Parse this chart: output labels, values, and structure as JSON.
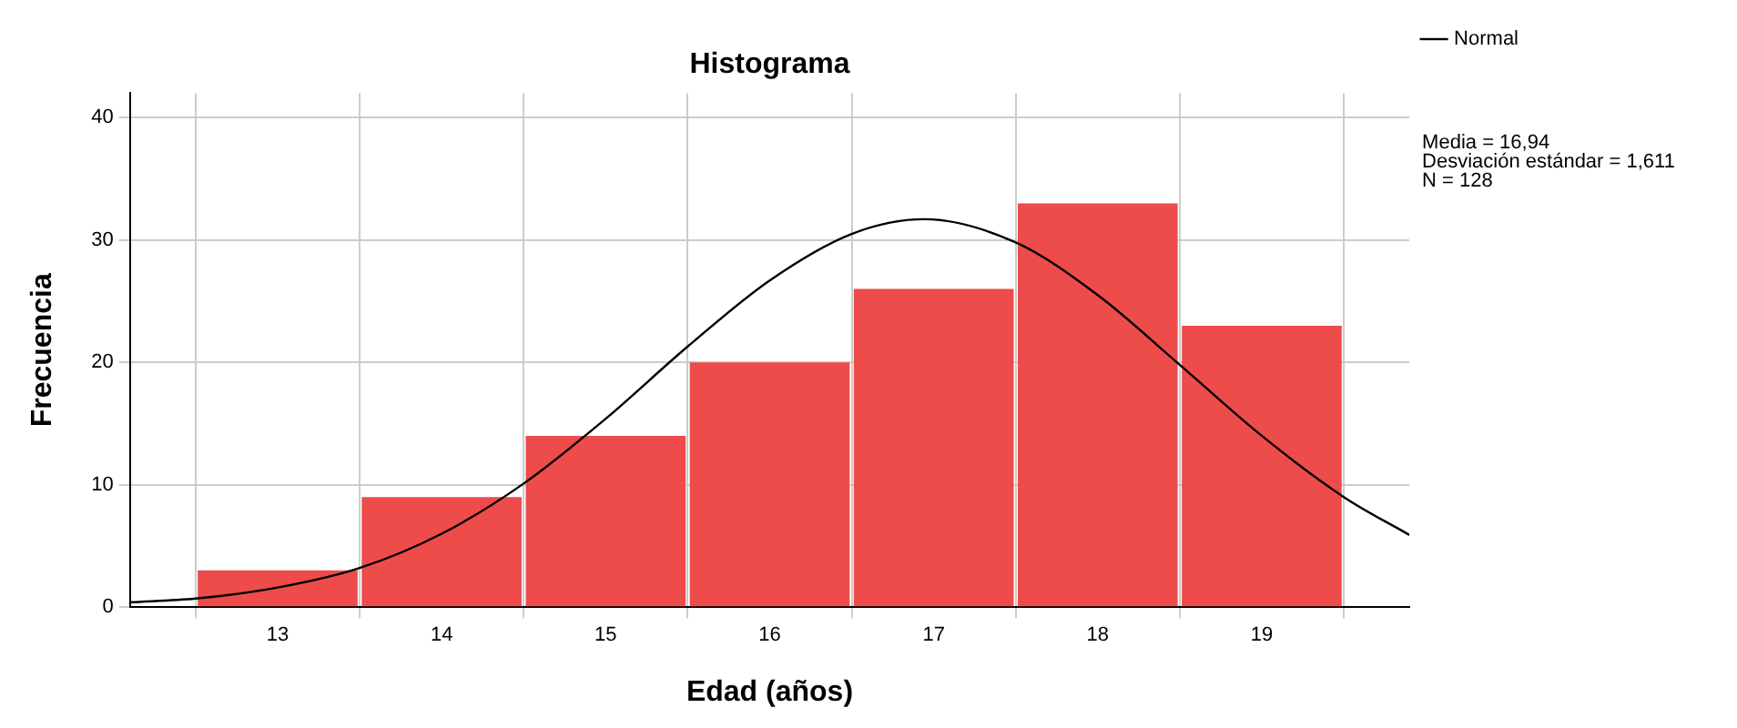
{
  "chart_data": {
    "type": "histogram",
    "title": "Histograma",
    "xlabel": "Edad (años)",
    "ylabel": "Frecuencia",
    "bins": [
      12.5,
      13.5,
      14.5,
      15.5,
      16.5,
      17.5,
      18.5,
      19.5
    ],
    "values": [
      3,
      9,
      14,
      20,
      26,
      33,
      23
    ],
    "color": "#ee4b4b",
    "xlim": [
      12.1,
      19.9
    ],
    "xticks": [
      13,
      14,
      15,
      16,
      17,
      18,
      19
    ],
    "ylim": [
      0,
      42
    ],
    "yticks": [
      0,
      10,
      20,
      30,
      40
    ],
    "grid": true,
    "legend": "top right",
    "marker": "none",
    "line_style": "solid",
    "annotations": [
      "Media = 16,94",
      "Desviación estándar = 1,611",
      "N = 128"
    ],
    "series": [
      {
        "name": "Normal",
        "type": "line",
        "color": "#000000",
        "x": [
          12.1,
          12.5,
          13,
          13.5,
          14,
          14.5,
          15,
          15.5,
          16,
          16.5,
          16.94,
          17.5,
          18,
          18.5,
          19,
          19.5,
          19.9
        ],
        "values": [
          0.4,
          0.7,
          1.6,
          3.2,
          6.0,
          10.1,
          15.4,
          21.3,
          26.7,
          30.5,
          31.7,
          29.8,
          25.5,
          19.8,
          14.0,
          9.0,
          5.9
        ]
      }
    ]
  }
}
